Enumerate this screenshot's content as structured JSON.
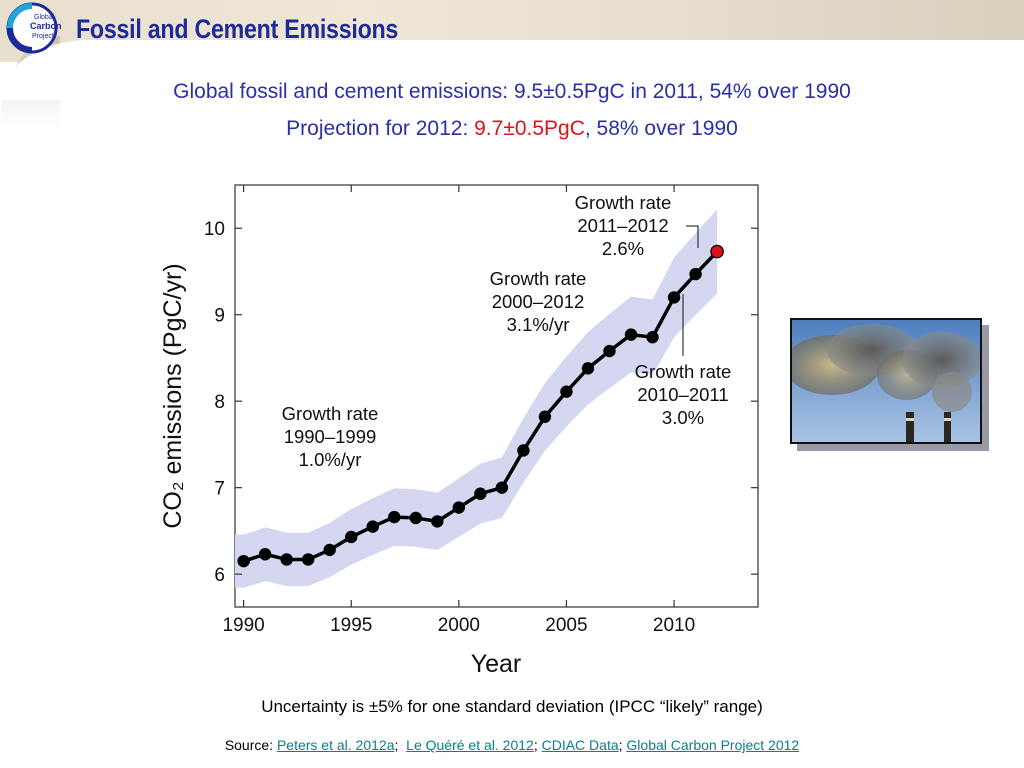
{
  "header": {
    "title": "Fossil and Cement Emissions",
    "logo_text": [
      "Global",
      "Carbon",
      "Project"
    ]
  },
  "subtitle": {
    "line1": "Global fossil and cement emissions: 9.5±0.5PgC in 2011, 54% over 1990",
    "line2_prefix": "Projection for 2012: ",
    "line2_highlight": "9.7±0.5PgC",
    "line2_suffix": ", 58% over 1990"
  },
  "colors": {
    "title": "#1d2a9a",
    "subtitle": "#2b2fa6",
    "highlight": "#e0101a",
    "band": "#d4d7ef",
    "series": "#000000",
    "projection": "#e0101a",
    "link": "#0a7f8c"
  },
  "chart_data": {
    "type": "line",
    "xlabel": "Year",
    "ylabel": "CO₂ emissions (PgC/yr)",
    "xlim": [
      1989.6,
      2013.9
    ],
    "ylim": [
      5.62,
      10.5
    ],
    "xticks": [
      1990,
      1995,
      2000,
      2005,
      2010
    ],
    "yticks": [
      6,
      7,
      8,
      9,
      10
    ],
    "grid": false,
    "uncertainty": "±5%",
    "series": [
      {
        "x": [
          1990,
          1991,
          1992,
          1993,
          1994,
          1995,
          1996,
          1997,
          1998,
          1999,
          2000,
          2001,
          2002,
          2003,
          2004,
          2005,
          2006,
          2007,
          2008,
          2009,
          2010,
          2011
        ],
        "values": [
          6.15,
          6.23,
          6.17,
          6.17,
          6.28,
          6.43,
          6.55,
          6.66,
          6.65,
          6.61,
          6.77,
          6.93,
          7.0,
          7.43,
          7.82,
          8.11,
          8.38,
          8.58,
          8.77,
          8.74,
          9.2,
          9.47
        ]
      }
    ],
    "projection": {
      "x": 2012,
      "value": 9.73
    },
    "annotations": [
      {
        "lines": [
          "Growth rate",
          "1990–1999",
          "1.0%/yr"
        ]
      },
      {
        "lines": [
          "Growth rate",
          "2000–2012",
          "3.1%/yr"
        ]
      },
      {
        "lines": [
          "Growth rate",
          "2011–2012",
          "2.6%"
        ]
      },
      {
        "lines": [
          "Growth rate",
          "2010–2011",
          "3.0%"
        ]
      }
    ]
  },
  "image": {
    "alt": "smokestacks"
  },
  "note": "Uncertainty is ±5% for one standard deviation (IPCC “likely” range)",
  "source": {
    "prefix": "Source: ",
    "links": [
      "Peters et al. 2012a",
      "Le Quéré et al. 2012",
      "CDIAC Data",
      "Global Carbon Project 2012"
    ]
  }
}
